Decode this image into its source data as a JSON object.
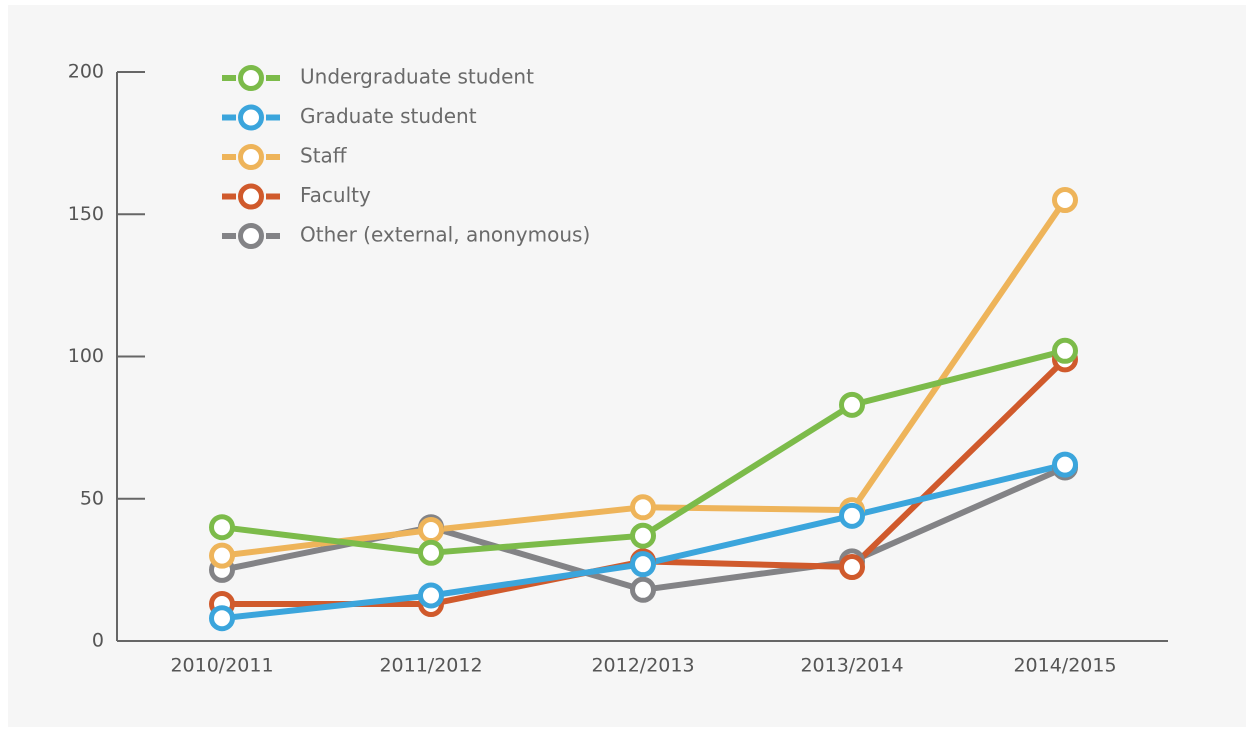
{
  "chart_data": {
    "type": "line",
    "categories": [
      "2010/2011",
      "2011/2012",
      "2012/2013",
      "2013/2014",
      "2014/2015"
    ],
    "ylim": [
      0,
      200
    ],
    "yticks": [
      0,
      50,
      100,
      150,
      200
    ],
    "series": [
      {
        "name": "Undergraduate student",
        "color": "#7cbb4a",
        "values": [
          40,
          31,
          37,
          83,
          102
        ]
      },
      {
        "name": "Graduate student",
        "color": "#3ba5dc",
        "values": [
          8,
          16,
          27,
          44,
          62
        ]
      },
      {
        "name": "Staff",
        "color": "#eeb45a",
        "values": [
          30,
          39,
          47,
          46,
          155
        ]
      },
      {
        "name": "Faculty",
        "color": "#d05a2c",
        "values": [
          13,
          13,
          28,
          26,
          99
        ]
      },
      {
        "name": "Other (external, anonymous)",
        "color": "#838386",
        "values": [
          25,
          40,
          18,
          28,
          61
        ]
      }
    ]
  }
}
